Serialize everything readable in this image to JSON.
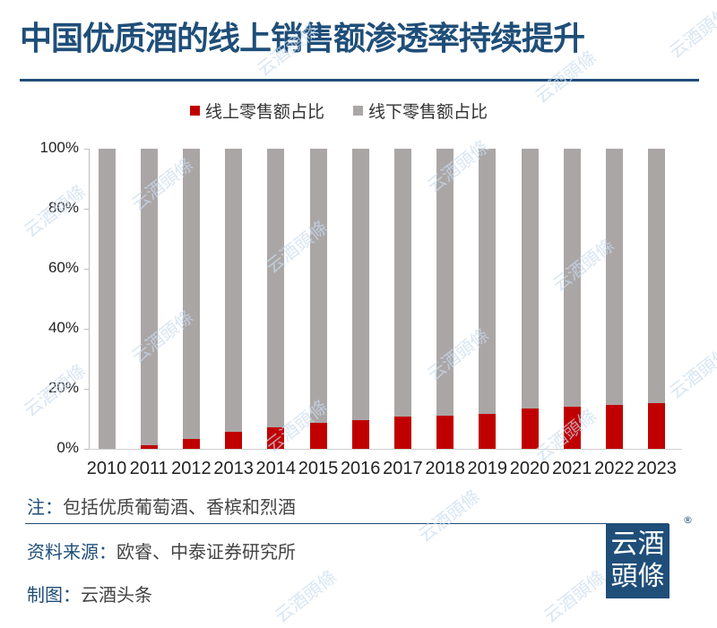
{
  "title": "中国优质酒的线上销售额渗透率持续提升",
  "legend": [
    {
      "label": "线上零售额占比",
      "color": "#c00000"
    },
    {
      "label": "线下零售额占比",
      "color": "#aba6a6"
    }
  ],
  "y_ticks": [
    "0%",
    "20%",
    "40%",
    "60%",
    "80%",
    "100%"
  ],
  "x_labels": [
    "2010",
    "2011",
    "2012",
    "2013",
    "2014",
    "2015",
    "2016",
    "2017",
    "2018",
    "2019",
    "2020",
    "2021",
    "2022",
    "2023"
  ],
  "footer": {
    "note_key": "注：",
    "note_text": "包括优质葡萄酒、香槟和烈酒",
    "source_key": "资料来源：",
    "source_text": "欧睿、中泰证券研究所",
    "made_key": "制图：",
    "made_text": "云酒头条"
  },
  "logo": {
    "line1": "云酒",
    "line2": "頭條",
    "reg": "®"
  },
  "watermark": "云酒頭條",
  "chart_data": {
    "type": "bar",
    "stacked": true,
    "percent": true,
    "title": "中国优质酒的线上销售额渗透率持续提升",
    "xlabel": "",
    "ylabel": "",
    "ylim": [
      0,
      100
    ],
    "y_ticks": [
      "0%",
      "20%",
      "40%",
      "60%",
      "80%",
      "100%"
    ],
    "categories": [
      "2010",
      "2011",
      "2012",
      "2013",
      "2014",
      "2015",
      "2016",
      "2017",
      "2018",
      "2019",
      "2020",
      "2021",
      "2022",
      "2023"
    ],
    "series": [
      {
        "name": "线上零售额占比",
        "color": "#c00000",
        "values": [
          0,
          1.2,
          3.3,
          5.6,
          7.2,
          8.7,
          9.5,
          10.7,
          11.0,
          11.6,
          13.4,
          14.0,
          14.6,
          15.2
        ]
      },
      {
        "name": "线下零售额占比",
        "color": "#aba6a6",
        "values": [
          100,
          98.8,
          96.7,
          94.4,
          92.8,
          91.3,
          90.5,
          89.3,
          89.0,
          88.4,
          86.6,
          86.0,
          85.4,
          84.8
        ]
      }
    ],
    "legend_position": "top",
    "grid": false,
    "notes": [
      "注：包括优质葡萄酒、香槟和烈酒",
      "资料来源：欧睿、中泰证券研究所",
      "制图：云酒头条"
    ]
  }
}
